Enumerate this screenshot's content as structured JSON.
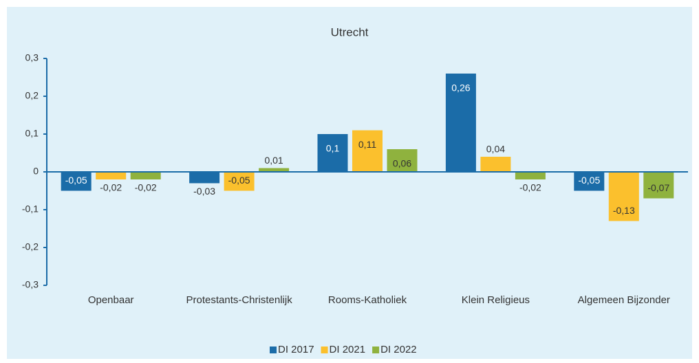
{
  "chart_data": {
    "type": "bar",
    "title": "Utrecht",
    "categories": [
      "Openbaar",
      "Protestants-Christenlijk",
      "Rooms-Katholiek",
      "Klein Religieus",
      "Algemeen Bijzonder"
    ],
    "series": [
      {
        "name": "DI 2017",
        "color": "#1b6ca8",
        "values": [
          -0.05,
          -0.03,
          0.1,
          0.26,
          -0.05
        ],
        "value_labels": [
          "-0,05",
          "-0,03",
          "0,1",
          "0,26",
          "-0,05"
        ]
      },
      {
        "name": "DI 2021",
        "color": "#fbc02d",
        "values": [
          -0.02,
          -0.05,
          0.11,
          0.04,
          -0.13
        ],
        "value_labels": [
          "-0,02",
          "-0,05",
          "0,11",
          "0,04",
          "-0,13"
        ]
      },
      {
        "name": "DI 2022",
        "color": "#8fb23e",
        "values": [
          -0.02,
          0.01,
          0.06,
          -0.02,
          -0.07
        ],
        "value_labels": [
          "-0,02",
          "0,01",
          "0,06",
          "-0,02",
          "-0,07"
        ]
      }
    ],
    "ylim": [
      -0.3,
      0.3
    ],
    "yticks": [
      {
        "value": -0.3,
        "label": "-0,3"
      },
      {
        "value": -0.2,
        "label": "-0,2"
      },
      {
        "value": -0.1,
        "label": "-0,1"
      },
      0,
      {
        "value": 0.1,
        "label": "0,1"
      },
      {
        "value": 0.2,
        "label": "0,2"
      },
      {
        "value": 0.3,
        "label": "0,3"
      }
    ],
    "legend": "bottom"
  }
}
